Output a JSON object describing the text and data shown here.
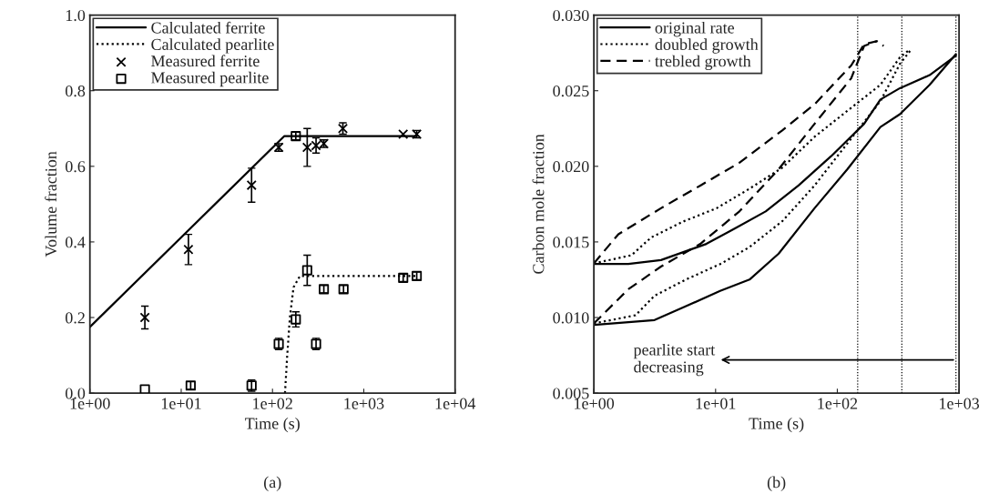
{
  "chart_data": [
    {
      "type": "scatter",
      "xlabel": "Time (s)",
      "ylabel": "Volume fraction",
      "annotations": [
        "(a)"
      ],
      "log": "x",
      "xlim": [
        1,
        10000
      ],
      "xticks": [
        {
          "value": 1,
          "label": "1e+00"
        },
        {
          "value": 10,
          "label": "1e+01"
        },
        {
          "value": 100,
          "label": "1e+02"
        },
        {
          "value": 1000,
          "label": "1e+03"
        },
        {
          "value": 10000,
          "label": "1e+04"
        }
      ],
      "ylim": [
        0,
        1
      ],
      "yticks": [
        {
          "value": 0,
          "label": "0.0"
        },
        {
          "value": 0.2,
          "label": "0.2"
        },
        {
          "value": 0.4,
          "label": "0.4"
        },
        {
          "value": 0.6,
          "label": "0.6"
        },
        {
          "value": 0.8,
          "label": "0.8"
        },
        {
          "value": 1,
          "label": "1.0"
        }
      ],
      "legend": "top left",
      "grid": false,
      "series": [
        {
          "name": "Calculated ferrite",
          "type": "line",
          "line_style": "solid",
          "marker": "none",
          "color": "#000000",
          "x": [
            1,
            135,
            3800
          ],
          "values": [
            0.175,
            0.68,
            0.68
          ]
        },
        {
          "name": "Calculated pearlite",
          "type": "line",
          "line_style": "dotted",
          "marker": "none",
          "color": "#000000",
          "x": [
            137,
            145,
            155,
            170,
            200,
            3800
          ],
          "values": [
            0,
            0.1,
            0.2,
            0.28,
            0.31,
            0.31
          ]
        },
        {
          "name": "Measured ferrite",
          "type": "scatter",
          "marker": "cross",
          "color": "#000000",
          "x": [
            4,
            12,
            59,
            117,
            240,
            300,
            365,
            590,
            2700,
            3800
          ],
          "values": [
            0.2,
            0.38,
            0.55,
            0.65,
            0.65,
            0.655,
            0.66,
            0.7,
            0.685,
            0.685
          ],
          "errors": [
            0.03,
            0.04,
            0.045,
            0.01,
            0.05,
            0.02,
            0.01,
            0.015,
            null,
            0.01
          ]
        },
        {
          "name": "Measured pearlite",
          "type": "scatter",
          "marker": "square",
          "color": "#000000",
          "x": [
            4,
            12.7,
            59,
            117,
            180,
            180,
            240,
            300,
            365,
            600,
            2700,
            3800
          ],
          "values": [
            0.01,
            0.02,
            0.02,
            0.13,
            0.195,
            0.68,
            0.325,
            0.13,
            0.275,
            0.275,
            0.305,
            0.31
          ],
          "errors": [
            null,
            0.01,
            0.015,
            0.015,
            0.02,
            0.01,
            0.04,
            0.015,
            0.01,
            0.01,
            0.01,
            0.01
          ]
        }
      ]
    },
    {
      "type": "line",
      "xlabel": "Time (s)",
      "ylabel": "Carbon mole fraction",
      "annotations": [
        "(b)",
        {
          "text": "pearlite start\ndecreasing",
          "x": 943,
          "y": 0.0072
        }
      ],
      "log": "x",
      "xlim": [
        1,
        1000
      ],
      "xticks": [
        {
          "value": 1,
          "label": "1e+00"
        },
        {
          "value": 10,
          "label": "1e+01"
        },
        {
          "value": 100,
          "label": "1e+02"
        },
        {
          "value": 1000,
          "label": "1e+03"
        }
      ],
      "ylim": [
        0.005,
        0.03
      ],
      "yticks": [
        {
          "value": 0.005,
          "label": "0.005"
        },
        {
          "value": 0.01,
          "label": "0.010"
        },
        {
          "value": 0.015,
          "label": "0.015"
        },
        {
          "value": 0.02,
          "label": "0.020"
        },
        {
          "value": 0.025,
          "label": "0.025"
        },
        {
          "value": 0.03,
          "label": "0.030"
        }
      ],
      "legend": "top left",
      "grid": false,
      "ref_lines": [
        {
          "axis": "x",
          "value": 147,
          "line_style": "dotted",
          "color": "#000000"
        },
        {
          "axis": "x",
          "value": 339,
          "line_style": "dotted",
          "color": "#000000"
        },
        {
          "axis": "x",
          "value": 943,
          "line_style": "dotted",
          "color": "#000000"
        }
      ],
      "series": [
        {
          "name": "original rate",
          "line_style": "solid",
          "color": "#000000",
          "x": [
            1,
            1.92,
            3.56,
            8.4,
            14.8,
            25.8,
            48,
            89,
            166,
            226,
            327,
            573,
            943
          ],
          "values": [
            0.01354,
            0.01354,
            0.0138,
            0.01487,
            0.01594,
            0.01702,
            0.01873,
            0.02067,
            0.02281,
            0.02442,
            0.02517,
            0.02603,
            0.02732
          ]
        },
        {
          "name": "doubled growth",
          "line_style": "dotted",
          "color": "#000000",
          "x": [
            1,
            2.04,
            2.96,
            5.5,
            10.2,
            19,
            35.3,
            65,
            121,
            226,
            327,
            397
          ],
          "values": [
            0.01358,
            0.01412,
            0.0153,
            0.01637,
            0.01723,
            0.01852,
            0.01991,
            0.02195,
            0.02367,
            0.02539,
            0.02721,
            0.02775
          ]
        },
        {
          "name": "trebled growth",
          "line_style": "dashed",
          "color": "#000000",
          "x": [
            1,
            1.59,
            3.56,
            7.5,
            15.7,
            35.3,
            65,
            130,
            166,
            211,
            240
          ],
          "values": [
            0.01358,
            0.01551,
            0.01723,
            0.01873,
            0.02024,
            0.02238,
            0.0241,
            0.02667,
            0.02807,
            0.02828,
            0.02796
          ]
        },
        {
          "line_style": "solid",
          "color": "#000000",
          "x": [
            1,
            3.15,
            5.5,
            10.9,
            19,
            33,
            65,
            121,
            226,
            327,
            573,
            943
          ],
          "values": [
            0.00951,
            0.00983,
            0.01069,
            0.01176,
            0.01251,
            0.01423,
            0.01723,
            0.01981,
            0.0226,
            0.02345,
            0.02539,
            0.02742
          ]
        },
        {
          "line_style": "dotted",
          "color": "#000000",
          "x": [
            1,
            2.2,
            3.15,
            5.7,
            11.2,
            19,
            35.3,
            65,
            121,
            226,
            327,
            397
          ],
          "values": [
            0.00961,
            0.01015,
            0.01144,
            0.01251,
            0.01358,
            0.01466,
            0.01637,
            0.01873,
            0.02152,
            0.02431,
            0.02678,
            0.02764
          ]
        },
        {
          "line_style": "dashed",
          "color": "#000000",
          "x": [
            1,
            1.92,
            3.56,
            7.5,
            15.7,
            33,
            65,
            130,
            166,
            211
          ],
          "values": [
            0.00961,
            0.01187,
            0.01337,
            0.01487,
            0.01702,
            0.01981,
            0.02281,
            0.02582,
            0.02796,
            0.02828
          ]
        }
      ]
    }
  ]
}
